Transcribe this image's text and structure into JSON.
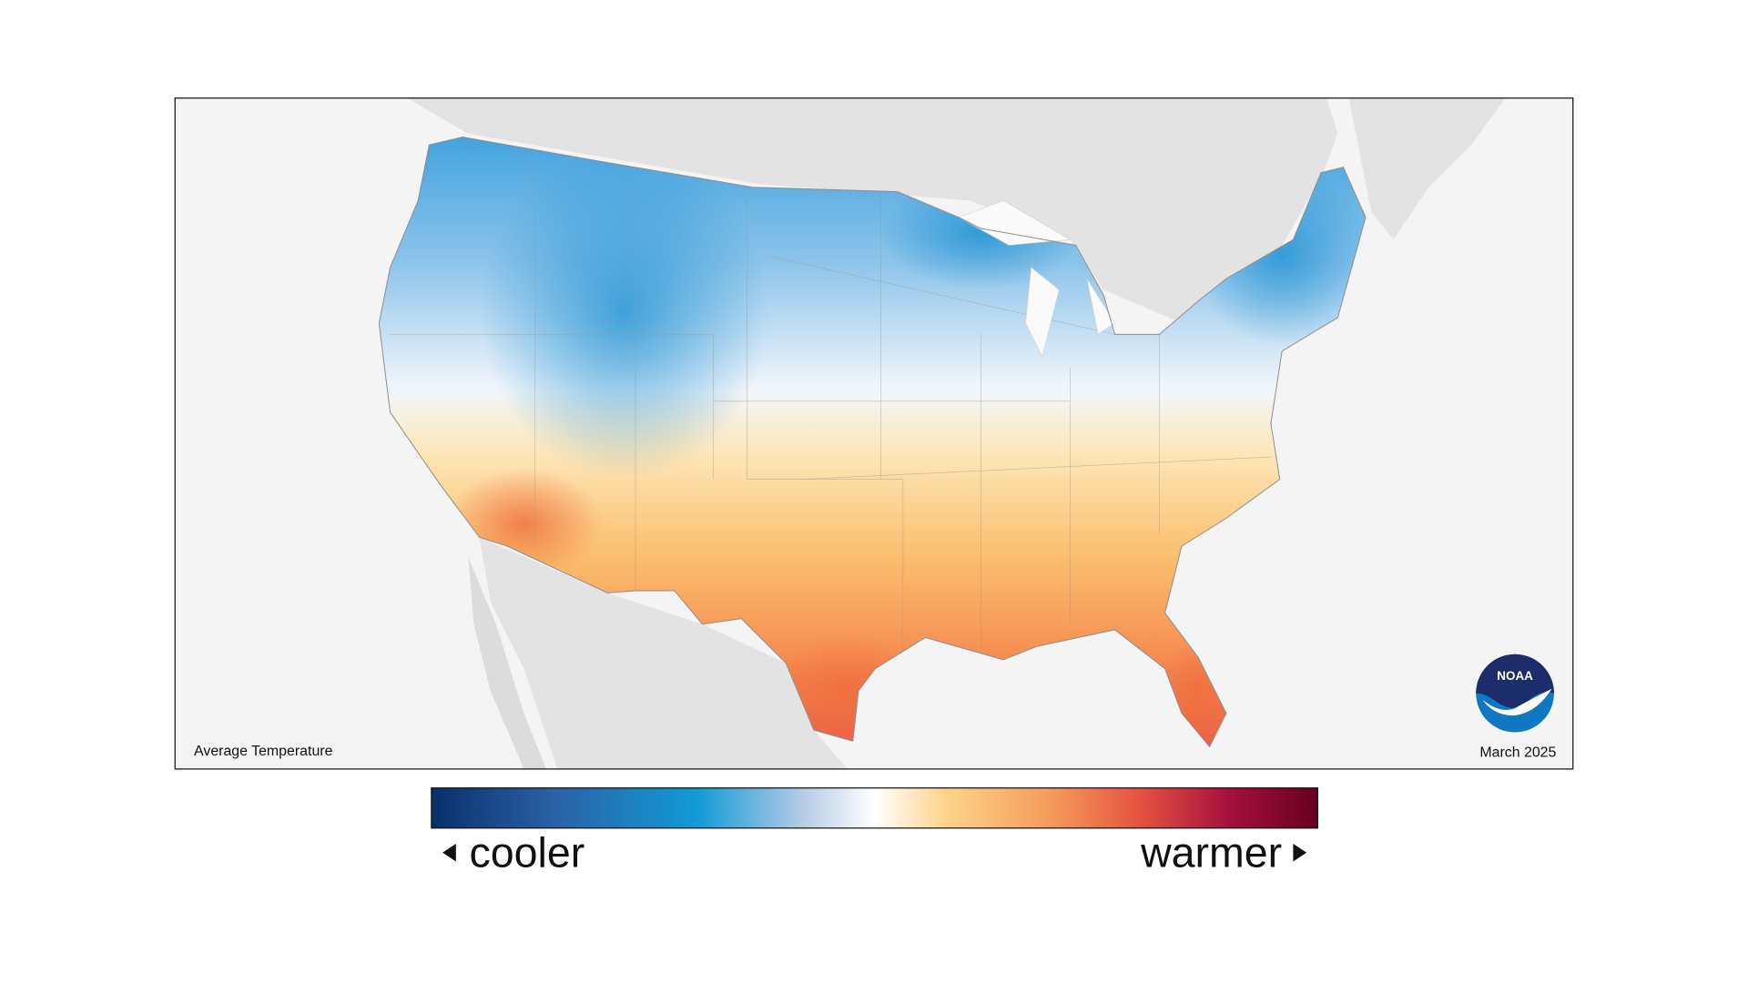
{
  "map": {
    "title": "Average Temperature",
    "date": "March 2025",
    "logo": "NOAA"
  },
  "legend": {
    "low": "cooler",
    "high": "warmer"
  }
}
